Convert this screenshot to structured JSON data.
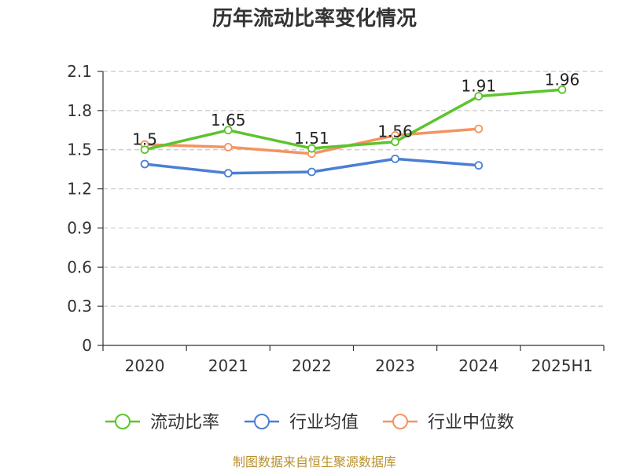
{
  "chart_data": {
    "type": "line",
    "title": "历年流动比率变化情况",
    "categories": [
      "2020",
      "2021",
      "2022",
      "2023",
      "2024",
      "2025H1"
    ],
    "ylim": [
      0,
      2.1
    ],
    "yticks": [
      "0",
      "0.3",
      "0.6",
      "0.9",
      "1.2",
      "1.5",
      "1.8",
      "2.1"
    ],
    "grid": true,
    "legend_position": "bottom",
    "series": [
      {
        "name": "流动比率",
        "color": "#5cc42c",
        "values": [
          1.5,
          1.65,
          1.51,
          1.56,
          1.91,
          1.96
        ],
        "labels": [
          "1.5",
          "1.65",
          "1.51",
          "1.56",
          "1.91",
          "1.96"
        ],
        "show_labels": true
      },
      {
        "name": "行业均值",
        "color": "#4a7fd4",
        "values": [
          1.39,
          1.32,
          1.33,
          1.43,
          1.38,
          null
        ],
        "show_labels": false
      },
      {
        "name": "行业中位数",
        "color": "#f49360",
        "values": [
          1.54,
          1.52,
          1.47,
          1.61,
          1.66,
          null
        ],
        "show_labels": false
      }
    ],
    "source": "制图数据来自恒生聚源数据库"
  }
}
